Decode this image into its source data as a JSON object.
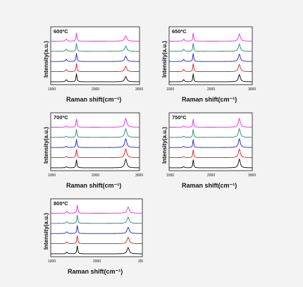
{
  "chart_data": [
    {
      "type": "line",
      "title": "600ºC",
      "xlabel": "Raman shift(cm⁻¹)",
      "ylabel": "Intensity(a.u.)",
      "xlim": [
        1000,
        3000
      ],
      "x_ticks": [
        "1000",
        "2000",
        "3000"
      ],
      "series_colors": [
        "#000000",
        "#e01a1a",
        "#1a1ae6",
        "#1a8a6e",
        "#ee22ee"
      ],
      "peaks_cm-1": [
        1350,
        1580,
        2690
      ],
      "series_relative_peak_heights": [
        [
          0.22,
          0.85,
          0.55
        ],
        [
          0.22,
          0.85,
          0.55
        ],
        [
          0.22,
          0.85,
          0.55
        ],
        [
          0.22,
          0.85,
          0.55
        ],
        [
          0.22,
          0.85,
          0.55
        ]
      ]
    },
    {
      "type": "line",
      "title": "650ºC",
      "xlabel": "Raman shift(cm⁻¹)",
      "ylabel": "Intensity(a.u.)",
      "xlim": [
        1000,
        3000
      ],
      "x_ticks": [
        "1000",
        "2000",
        "3000"
      ],
      "series_colors": [
        "#000000",
        "#e01a1a",
        "#1a1ae6",
        "#1a8a6e",
        "#ee22ee"
      ],
      "peaks_cm-1": [
        1350,
        1580,
        2690
      ],
      "series_relative_peak_heights": [
        [
          0.22,
          0.85,
          0.75
        ],
        [
          0.22,
          0.85,
          0.75
        ],
        [
          0.22,
          0.85,
          0.75
        ],
        [
          0.22,
          0.85,
          0.75
        ],
        [
          0.22,
          0.85,
          0.75
        ]
      ]
    },
    {
      "type": "line",
      "title": "700ºC",
      "xlabel": "Raman shift(cm⁻¹)",
      "ylabel": "Intensity(a.u.)",
      "xlim": [
        1000,
        3000
      ],
      "x_ticks": [
        "1000",
        "2000",
        "3000"
      ],
      "series_colors": [
        "#000000",
        "#e01a1a",
        "#1a1ae6",
        "#1a8a6e",
        "#ee22ee"
      ],
      "peaks_cm-1": [
        1350,
        1580,
        2690
      ],
      "series_relative_peak_heights": [
        [
          0.12,
          0.85,
          0.9
        ],
        [
          0.12,
          0.85,
          0.9
        ],
        [
          0.12,
          0.85,
          0.9
        ],
        [
          0.12,
          0.85,
          0.9
        ],
        [
          0.12,
          0.85,
          0.9
        ]
      ]
    },
    {
      "type": "line",
      "title": "750ºC",
      "xlabel": "Raman shift(cm⁻¹)",
      "ylabel": "Intensity(a.u.)",
      "xlim": [
        1000,
        3000
      ],
      "x_ticks": [
        "1000",
        "2000",
        "3000"
      ],
      "series_colors": [
        "#000000",
        "#e01a1a",
        "#1a1ae6",
        "#1a8a6e",
        "#ee22ee"
      ],
      "peaks_cm-1": [
        1350,
        1580,
        2690
      ],
      "series_relative_peak_heights": [
        [
          0.12,
          0.85,
          0.9
        ],
        [
          0.12,
          0.85,
          0.9
        ],
        [
          0.12,
          0.85,
          0.9
        ],
        [
          0.12,
          0.85,
          0.9
        ],
        [
          0.12,
          0.85,
          0.9
        ]
      ]
    },
    {
      "type": "line",
      "title": "800ºC",
      "xlabel": "Raman shift(cm⁻¹)",
      "ylabel": "Intensity(a.u.)",
      "xlim": [
        1000,
        3000
      ],
      "x_ticks": [
        "1000",
        "2000",
        "3000"
      ],
      "series_colors": [
        "#000000",
        "#e01a1a",
        "#1a1ae6",
        "#1a8a6e",
        "#ee22ee"
      ],
      "peaks_cm-1": [
        1350,
        1580,
        2690
      ],
      "series_relative_peak_heights": [
        [
          0.18,
          0.85,
          0.65
        ],
        [
          0.18,
          0.85,
          0.65
        ],
        [
          0.18,
          0.85,
          0.65
        ],
        [
          0.18,
          0.85,
          0.65
        ],
        [
          0.18,
          0.85,
          0.65
        ]
      ]
    }
  ]
}
